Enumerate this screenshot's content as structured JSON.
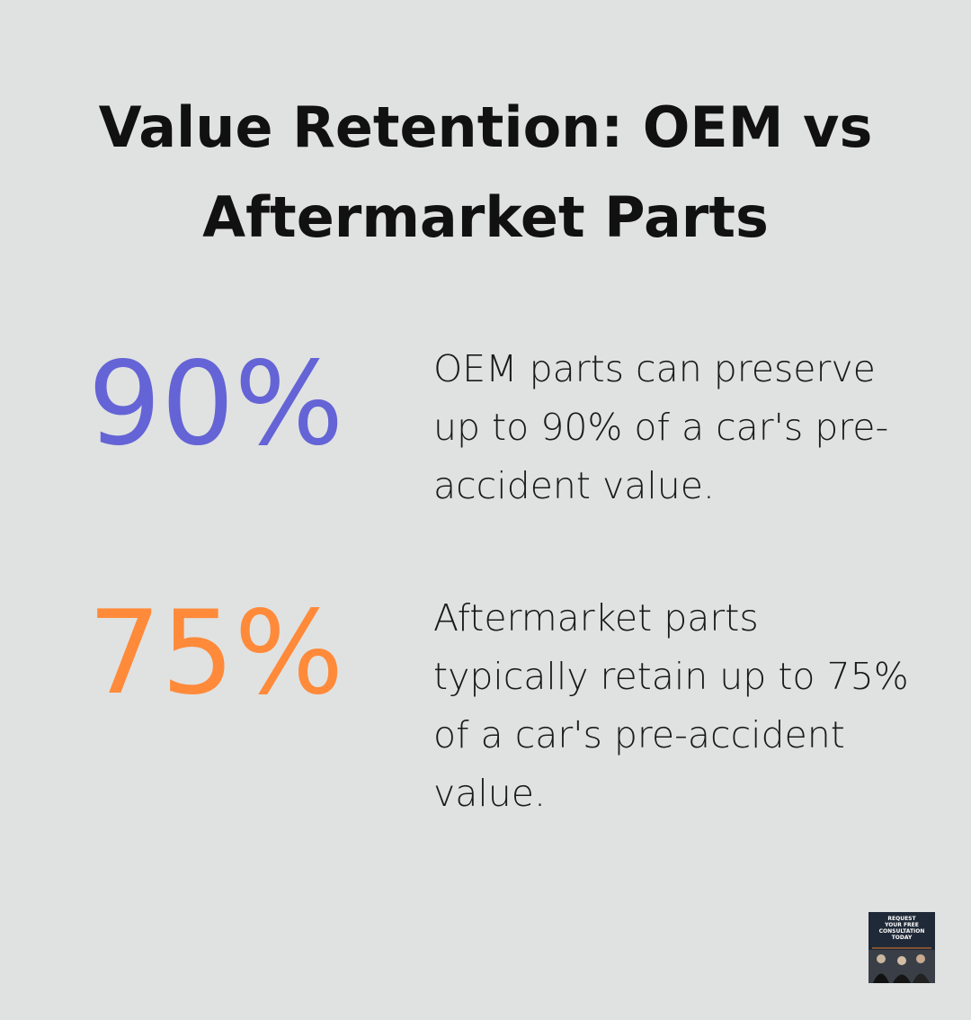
{
  "header": {
    "title": "Value Retention: OEM vs Aftermarket Parts"
  },
  "stats": [
    {
      "value": "90%",
      "color": "#6464d6",
      "text": "OEM parts can preserve up to 90% of a car's pre-accident value."
    },
    {
      "value": "75%",
      "color": "#ff8a3a",
      "text": "Aftermarket parts typically retain up to 75% of a car's pre-accident value."
    }
  ],
  "badge": {
    "lines": [
      "REQUEST",
      "YOUR FREE",
      "CONSULTATION",
      "TODAY"
    ]
  }
}
